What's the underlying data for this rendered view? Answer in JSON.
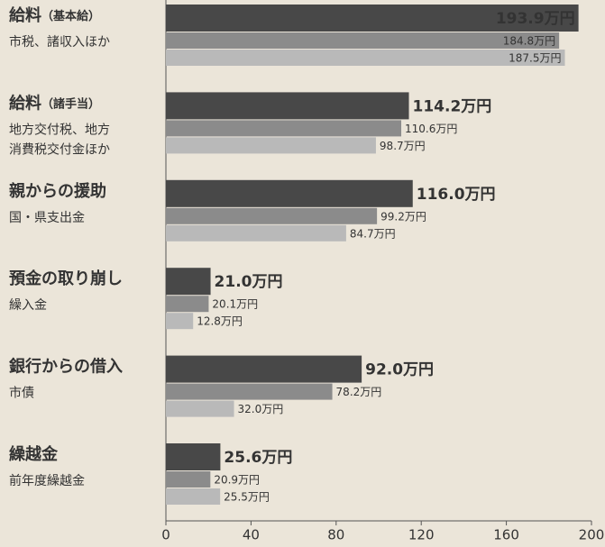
{
  "chart_data": {
    "type": "bar",
    "orientation": "horizontal",
    "categories": [
      {
        "label": "給料",
        "note": "（基本給）",
        "sub": [
          "市税、諸収入ほか"
        ]
      },
      {
        "label": "給料",
        "note": "（諸手当）",
        "sub": [
          "地方交付税、地方",
          "消費税交付金ほか"
        ]
      },
      {
        "label": "親からの援助",
        "sub": [
          "国・県支出金"
        ]
      },
      {
        "label": "預金の取り崩し",
        "sub": [
          "繰入金"
        ]
      },
      {
        "label": "銀行からの借入",
        "sub": [
          "市債"
        ]
      },
      {
        "label": "繰越金",
        "sub": [
          "前年度繰越金"
        ]
      }
    ],
    "series": [
      {
        "color": "#484848",
        "values": [
          193.9,
          114.2,
          116.0,
          21.0,
          92.0,
          25.6
        ],
        "value_labels": [
          "193.9万円",
          "114.2万円",
          "116.0万円",
          "21.0万円",
          "92.0万円",
          "25.6万円"
        ]
      },
      {
        "color": "#8b8b8b",
        "values": [
          184.8,
          110.6,
          99.2,
          20.1,
          78.2,
          20.9
        ],
        "value_labels": [
          "184.8万円",
          "110.6万円",
          "99.2万円",
          "20.1万円",
          "78.2万円",
          "20.9万円"
        ]
      },
      {
        "color": "#b9b9b9",
        "values": [
          187.5,
          98.7,
          84.7,
          12.8,
          32.0,
          25.5
        ],
        "value_labels": [
          "187.5万円",
          "98.7万円",
          "84.7万円",
          "12.8万円",
          "32.0万円",
          "25.5万円"
        ]
      }
    ],
    "xlim": [
      0,
      200
    ],
    "xticks": [
      0,
      40,
      80,
      120,
      160,
      200
    ]
  }
}
